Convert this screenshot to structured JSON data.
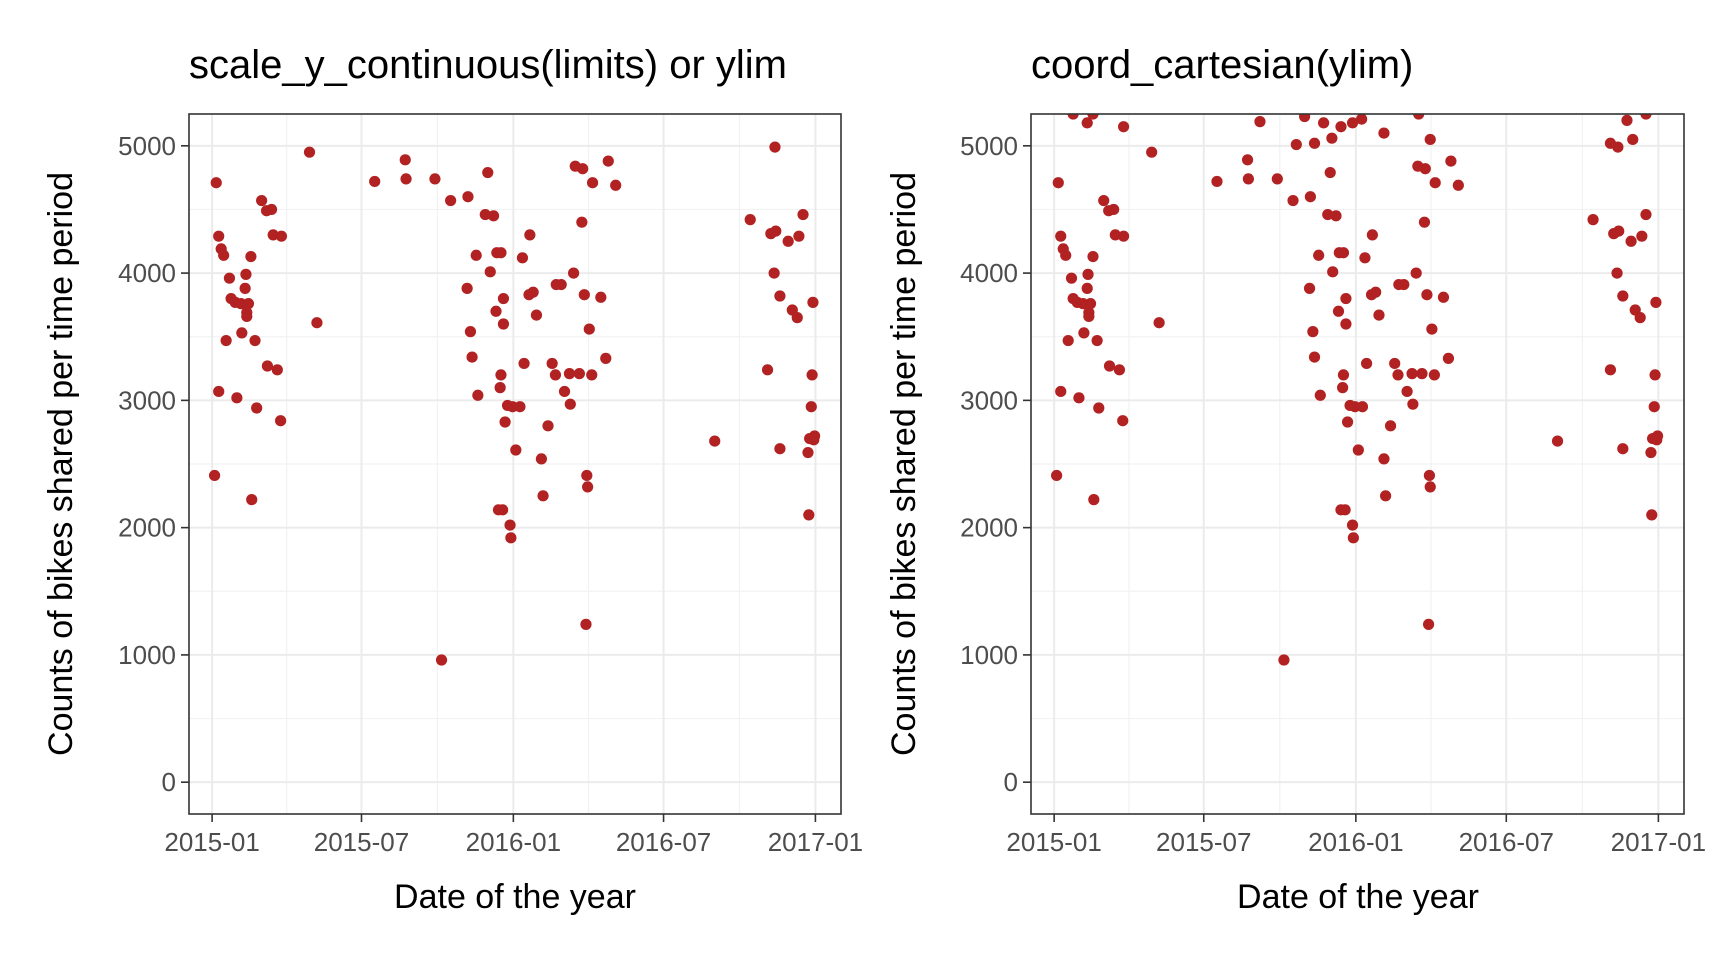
{
  "chart_data": [
    {
      "type": "scatter",
      "title": "scale_y_continuous(limits) or ylim",
      "xlabel": "Date of the year",
      "ylabel": "Counts of bikes shared per time period",
      "x_ticks": [
        "2015-01",
        "2015-07",
        "2016-01",
        "2016-07",
        "2017-01"
      ],
      "y_ticks": [
        "0",
        "1000",
        "2000",
        "3000",
        "4000",
        "5000"
      ],
      "xlim": [
        "2014-12-04",
        "2017-02-01"
      ],
      "ylim": [
        -250,
        5250
      ],
      "grid": true,
      "color": "#b22222",
      "points": [
        {
          "x": "2015-01-04",
          "y": 2410
        },
        {
          "x": "2015-01-06",
          "y": 4710
        },
        {
          "x": "2015-01-09",
          "y": 4290
        },
        {
          "x": "2015-01-09",
          "y": 3070
        },
        {
          "x": "2015-01-12",
          "y": 4190
        },
        {
          "x": "2015-01-15",
          "y": 4140
        },
        {
          "x": "2015-01-18",
          "y": 3470
        },
        {
          "x": "2015-01-22",
          "y": 3960
        },
        {
          "x": "2015-01-24",
          "y": 3800
        },
        {
          "x": "2015-01-29",
          "y": 3770
        },
        {
          "x": "2015-01-31",
          "y": 3020
        },
        {
          "x": "2015-02-05",
          "y": 3760
        },
        {
          "x": "2015-02-06",
          "y": 3530
        },
        {
          "x": "2015-02-10",
          "y": 3880
        },
        {
          "x": "2015-02-11",
          "y": 3990
        },
        {
          "x": "2015-02-12",
          "y": 3690
        },
        {
          "x": "2015-02-12",
          "y": 3660
        },
        {
          "x": "2015-02-14",
          "y": 3760
        },
        {
          "x": "2015-02-17",
          "y": 4130
        },
        {
          "x": "2015-02-18",
          "y": 2220
        },
        {
          "x": "2015-02-22",
          "y": 3470
        },
        {
          "x": "2015-02-24",
          "y": 2940
        },
        {
          "x": "2015-03-02",
          "y": 4570
        },
        {
          "x": "2015-03-08",
          "y": 4490
        },
        {
          "x": "2015-03-09",
          "y": 3270
        },
        {
          "x": "2015-03-14",
          "y": 4500
        },
        {
          "x": "2015-03-16",
          "y": 4300
        },
        {
          "x": "2015-03-21",
          "y": 3240
        },
        {
          "x": "2015-03-25",
          "y": 2840
        },
        {
          "x": "2015-03-26",
          "y": 4290
        },
        {
          "x": "2015-04-29",
          "y": 4950
        },
        {
          "x": "2015-05-08",
          "y": 3610
        },
        {
          "x": "2015-07-17",
          "y": 4720
        },
        {
          "x": "2015-08-23",
          "y": 4890
        },
        {
          "x": "2015-08-24",
          "y": 4740
        },
        {
          "x": "2015-09-28",
          "y": 4740
        },
        {
          "x": "2015-10-06",
          "y": 960
        },
        {
          "x": "2015-10-17",
          "y": 4570
        },
        {
          "x": "2015-11-07",
          "y": 4600
        },
        {
          "x": "2015-11-06",
          "y": 3880
        },
        {
          "x": "2015-11-10",
          "y": 3540
        },
        {
          "x": "2015-11-12",
          "y": 3340
        },
        {
          "x": "2015-11-17",
          "y": 4140
        },
        {
          "x": "2015-11-19",
          "y": 3040
        },
        {
          "x": "2015-11-28",
          "y": 4460
        },
        {
          "x": "2015-12-01",
          "y": 4790
        },
        {
          "x": "2015-12-04",
          "y": 4010
        },
        {
          "x": "2015-12-08",
          "y": 4450
        },
        {
          "x": "2015-12-12",
          "y": 4160
        },
        {
          "x": "2015-12-11",
          "y": 3700
        },
        {
          "x": "2015-12-14",
          "y": 2140
        },
        {
          "x": "2015-12-16",
          "y": 3100
        },
        {
          "x": "2015-12-17",
          "y": 3200
        },
        {
          "x": "2015-12-17",
          "y": 4160
        },
        {
          "x": "2015-12-19",
          "y": 2140
        },
        {
          "x": "2015-12-20",
          "y": 3600
        },
        {
          "x": "2015-12-20",
          "y": 3800
        },
        {
          "x": "2015-12-22",
          "y": 2830
        },
        {
          "x": "2015-12-25",
          "y": 2960
        },
        {
          "x": "2015-12-28",
          "y": 2020
        },
        {
          "x": "2015-12-29",
          "y": 1920
        },
        {
          "x": "2015-12-31",
          "y": 2950
        },
        {
          "x": "2016-01-04",
          "y": 2610
        },
        {
          "x": "2016-01-09",
          "y": 2950
        },
        {
          "x": "2016-01-12",
          "y": 4120
        },
        {
          "x": "2016-01-14",
          "y": 3290
        },
        {
          "x": "2016-01-21",
          "y": 4300
        },
        {
          "x": "2016-01-20",
          "y": 3830
        },
        {
          "x": "2016-01-25",
          "y": 3850
        },
        {
          "x": "2016-01-29",
          "y": 3670
        },
        {
          "x": "2016-02-04",
          "y": 2540
        },
        {
          "x": "2016-02-06",
          "y": 2250
        },
        {
          "x": "2016-02-12",
          "y": 2800
        },
        {
          "x": "2016-02-17",
          "y": 3290
        },
        {
          "x": "2016-02-21",
          "y": 3200
        },
        {
          "x": "2016-02-22",
          "y": 3910
        },
        {
          "x": "2016-02-28",
          "y": 3910
        },
        {
          "x": "2016-03-03",
          "y": 3070
        },
        {
          "x": "2016-03-09",
          "y": 3210
        },
        {
          "x": "2016-03-10",
          "y": 2970
        },
        {
          "x": "2016-03-14",
          "y": 4000
        },
        {
          "x": "2016-03-16",
          "y": 4840
        },
        {
          "x": "2016-03-21",
          "y": 3210
        },
        {
          "x": "2016-03-24",
          "y": 4400
        },
        {
          "x": "2016-03-25",
          "y": 4820
        },
        {
          "x": "2016-03-27",
          "y": 3830
        },
        {
          "x": "2016-03-29",
          "y": 1240
        },
        {
          "x": "2016-03-30",
          "y": 2410
        },
        {
          "x": "2016-03-31",
          "y": 2320
        },
        {
          "x": "2016-04-02",
          "y": 3560
        },
        {
          "x": "2016-04-05",
          "y": 3200
        },
        {
          "x": "2016-04-06",
          "y": 4710
        },
        {
          "x": "2016-04-16",
          "y": 3810
        },
        {
          "x": "2016-04-22",
          "y": 3330
        },
        {
          "x": "2016-04-25",
          "y": 4880
        },
        {
          "x": "2016-05-04",
          "y": 4690
        },
        {
          "x": "2016-09-01",
          "y": 2680
        },
        {
          "x": "2016-10-14",
          "y": 4420
        },
        {
          "x": "2016-11-04",
          "y": 3240
        },
        {
          "x": "2016-11-08",
          "y": 4310
        },
        {
          "x": "2016-11-14",
          "y": 4330
        },
        {
          "x": "2016-11-12",
          "y": 4000
        },
        {
          "x": "2016-11-13",
          "y": 4990
        },
        {
          "x": "2016-11-19",
          "y": 3820
        },
        {
          "x": "2016-11-19",
          "y": 2620
        },
        {
          "x": "2016-11-29",
          "y": 4250
        },
        {
          "x": "2016-12-04",
          "y": 3710
        },
        {
          "x": "2016-12-10",
          "y": 3650
        },
        {
          "x": "2016-12-12",
          "y": 4290
        },
        {
          "x": "2016-12-17",
          "y": 4460
        },
        {
          "x": "2016-12-23",
          "y": 2590
        },
        {
          "x": "2016-12-24",
          "y": 2100
        },
        {
          "x": "2016-12-25",
          "y": 2700
        },
        {
          "x": "2016-12-27",
          "y": 2950
        },
        {
          "x": "2016-12-28",
          "y": 3200
        },
        {
          "x": "2016-12-29",
          "y": 3770
        },
        {
          "x": "2016-12-30",
          "y": 2690
        },
        {
          "x": "2016-12-31",
          "y": 2720
        }
      ]
    },
    {
      "type": "scatter",
      "title": "coord_cartesian(ylim)",
      "xlabel": "Date of the year",
      "ylabel": "Counts of bikes shared per time period",
      "x_ticks": [
        "2015-01",
        "2015-07",
        "2016-01",
        "2016-07",
        "2017-01"
      ],
      "y_ticks": [
        "0",
        "1000",
        "2000",
        "3000",
        "4000",
        "5000"
      ],
      "xlim": [
        "2014-12-04",
        "2017-02-01"
      ],
      "ylim": [
        -250,
        5250
      ],
      "grid": true,
      "color": "#b22222",
      "points": [
        {
          "x": "2015-01-04",
          "y": 2410
        },
        {
          "x": "2015-01-06",
          "y": 4710
        },
        {
          "x": "2015-01-09",
          "y": 4290
        },
        {
          "x": "2015-01-09",
          "y": 3070
        },
        {
          "x": "2015-01-12",
          "y": 4190
        },
        {
          "x": "2015-01-15",
          "y": 4140
        },
        {
          "x": "2015-01-18",
          "y": 3470
        },
        {
          "x": "2015-01-22",
          "y": 3960
        },
        {
          "x": "2015-01-24",
          "y": 3800
        },
        {
          "x": "2015-01-29",
          "y": 3770
        },
        {
          "x": "2015-01-31",
          "y": 3020
        },
        {
          "x": "2015-02-05",
          "y": 3760
        },
        {
          "x": "2015-02-06",
          "y": 3530
        },
        {
          "x": "2015-02-10",
          "y": 3880
        },
        {
          "x": "2015-02-11",
          "y": 3990
        },
        {
          "x": "2015-02-12",
          "y": 3690
        },
        {
          "x": "2015-02-12",
          "y": 3660
        },
        {
          "x": "2015-02-14",
          "y": 3760
        },
        {
          "x": "2015-02-17",
          "y": 4130
        },
        {
          "x": "2015-02-18",
          "y": 2220
        },
        {
          "x": "2015-02-22",
          "y": 3470
        },
        {
          "x": "2015-02-24",
          "y": 2940
        },
        {
          "x": "2015-03-02",
          "y": 4570
        },
        {
          "x": "2015-03-08",
          "y": 4490
        },
        {
          "x": "2015-03-09",
          "y": 3270
        },
        {
          "x": "2015-03-14",
          "y": 4500
        },
        {
          "x": "2015-03-16",
          "y": 4300
        },
        {
          "x": "2015-03-21",
          "y": 3240
        },
        {
          "x": "2015-03-25",
          "y": 2840
        },
        {
          "x": "2015-03-26",
          "y": 4290
        },
        {
          "x": "2015-04-29",
          "y": 4950
        },
        {
          "x": "2015-05-08",
          "y": 3610
        },
        {
          "x": "2015-07-17",
          "y": 4720
        },
        {
          "x": "2015-08-23",
          "y": 4890
        },
        {
          "x": "2015-08-24",
          "y": 4740
        },
        {
          "x": "2015-09-28",
          "y": 4740
        },
        {
          "x": "2015-10-06",
          "y": 960
        },
        {
          "x": "2015-10-17",
          "y": 4570
        },
        {
          "x": "2015-11-07",
          "y": 4600
        },
        {
          "x": "2015-11-06",
          "y": 3880
        },
        {
          "x": "2015-11-10",
          "y": 3540
        },
        {
          "x": "2015-11-12",
          "y": 3340
        },
        {
          "x": "2015-11-17",
          "y": 4140
        },
        {
          "x": "2015-11-19",
          "y": 3040
        },
        {
          "x": "2015-11-28",
          "y": 4460
        },
        {
          "x": "2015-12-01",
          "y": 4790
        },
        {
          "x": "2015-12-04",
          "y": 4010
        },
        {
          "x": "2015-12-08",
          "y": 4450
        },
        {
          "x": "2015-12-12",
          "y": 4160
        },
        {
          "x": "2015-12-11",
          "y": 3700
        },
        {
          "x": "2015-12-14",
          "y": 2140
        },
        {
          "x": "2015-12-16",
          "y": 3100
        },
        {
          "x": "2015-12-17",
          "y": 3200
        },
        {
          "x": "2015-12-17",
          "y": 4160
        },
        {
          "x": "2015-12-19",
          "y": 2140
        },
        {
          "x": "2015-12-20",
          "y": 3600
        },
        {
          "x": "2015-12-20",
          "y": 3800
        },
        {
          "x": "2015-12-22",
          "y": 2830
        },
        {
          "x": "2015-12-25",
          "y": 2960
        },
        {
          "x": "2015-12-28",
          "y": 2020
        },
        {
          "x": "2015-12-29",
          "y": 1920
        },
        {
          "x": "2015-12-31",
          "y": 2950
        },
        {
          "x": "2016-01-04",
          "y": 2610
        },
        {
          "x": "2016-01-09",
          "y": 2950
        },
        {
          "x": "2016-01-12",
          "y": 4120
        },
        {
          "x": "2016-01-14",
          "y": 3290
        },
        {
          "x": "2016-01-21",
          "y": 4300
        },
        {
          "x": "2016-01-20",
          "y": 3830
        },
        {
          "x": "2016-01-25",
          "y": 3850
        },
        {
          "x": "2016-01-29",
          "y": 3670
        },
        {
          "x": "2016-02-04",
          "y": 2540
        },
        {
          "x": "2016-02-06",
          "y": 2250
        },
        {
          "x": "2016-02-12",
          "y": 2800
        },
        {
          "x": "2016-02-17",
          "y": 3290
        },
        {
          "x": "2016-02-21",
          "y": 3200
        },
        {
          "x": "2016-02-22",
          "y": 3910
        },
        {
          "x": "2016-02-28",
          "y": 3910
        },
        {
          "x": "2016-03-03",
          "y": 3070
        },
        {
          "x": "2016-03-09",
          "y": 3210
        },
        {
          "x": "2016-03-10",
          "y": 2970
        },
        {
          "x": "2016-03-14",
          "y": 4000
        },
        {
          "x": "2016-03-16",
          "y": 4840
        },
        {
          "x": "2016-03-21",
          "y": 3210
        },
        {
          "x": "2016-03-24",
          "y": 4400
        },
        {
          "x": "2016-03-25",
          "y": 4820
        },
        {
          "x": "2016-03-27",
          "y": 3830
        },
        {
          "x": "2016-03-29",
          "y": 1240
        },
        {
          "x": "2016-03-30",
          "y": 2410
        },
        {
          "x": "2016-03-31",
          "y": 2320
        },
        {
          "x": "2016-04-02",
          "y": 3560
        },
        {
          "x": "2016-04-05",
          "y": 3200
        },
        {
          "x": "2016-04-06",
          "y": 4710
        },
        {
          "x": "2016-04-16",
          "y": 3810
        },
        {
          "x": "2016-04-22",
          "y": 3330
        },
        {
          "x": "2016-04-25",
          "y": 4880
        },
        {
          "x": "2016-05-04",
          "y": 4690
        },
        {
          "x": "2016-09-01",
          "y": 2680
        },
        {
          "x": "2016-10-14",
          "y": 4420
        },
        {
          "x": "2016-11-04",
          "y": 3240
        },
        {
          "x": "2016-11-08",
          "y": 4310
        },
        {
          "x": "2016-11-14",
          "y": 4330
        },
        {
          "x": "2016-11-12",
          "y": 4000
        },
        {
          "x": "2016-11-13",
          "y": 4990
        },
        {
          "x": "2016-11-19",
          "y": 3820
        },
        {
          "x": "2016-11-19",
          "y": 2620
        },
        {
          "x": "2016-11-29",
          "y": 4250
        },
        {
          "x": "2016-12-04",
          "y": 3710
        },
        {
          "x": "2016-12-10",
          "y": 3650
        },
        {
          "x": "2016-12-12",
          "y": 4290
        },
        {
          "x": "2016-12-17",
          "y": 4460
        },
        {
          "x": "2016-12-23",
          "y": 2590
        },
        {
          "x": "2016-12-24",
          "y": 2100
        },
        {
          "x": "2016-12-25",
          "y": 2700
        },
        {
          "x": "2016-12-27",
          "y": 2950
        },
        {
          "x": "2016-12-28",
          "y": 3200
        },
        {
          "x": "2016-12-29",
          "y": 3770
        },
        {
          "x": "2016-12-30",
          "y": 2690
        },
        {
          "x": "2016-12-31",
          "y": 2720
        },
        {
          "x": "2015-01-24",
          "y": 5250
        },
        {
          "x": "2015-02-10",
          "y": 5180
        },
        {
          "x": "2015-02-17",
          "y": 5250
        },
        {
          "x": "2015-03-26",
          "y": 5150
        },
        {
          "x": "2015-09-07",
          "y": 5190
        },
        {
          "x": "2015-10-21",
          "y": 5010
        },
        {
          "x": "2015-10-31",
          "y": 5230
        },
        {
          "x": "2015-11-12",
          "y": 5020
        },
        {
          "x": "2015-11-23",
          "y": 5180
        },
        {
          "x": "2015-12-03",
          "y": 5060
        },
        {
          "x": "2015-12-14",
          "y": 5150
        },
        {
          "x": "2015-12-28",
          "y": 5180
        },
        {
          "x": "2016-01-08",
          "y": 5210
        },
        {
          "x": "2016-02-04",
          "y": 5100
        },
        {
          "x": "2016-03-17",
          "y": 5250
        },
        {
          "x": "2016-03-31",
          "y": 5050
        },
        {
          "x": "2016-11-04",
          "y": 5020
        },
        {
          "x": "2016-11-24",
          "y": 5200
        },
        {
          "x": "2016-12-01",
          "y": 5050
        },
        {
          "x": "2016-12-17",
          "y": 5250
        }
      ]
    }
  ]
}
